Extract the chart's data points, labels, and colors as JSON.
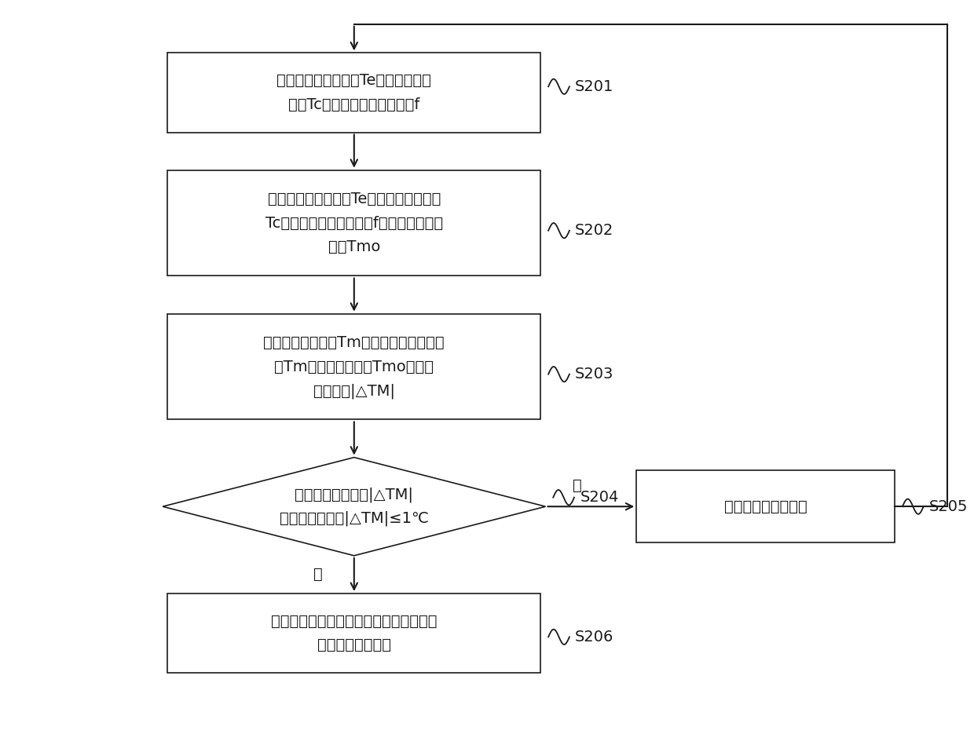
{
  "background_color": "#ffffff",
  "box_edge_color": "#000000",
  "text_color": "#000000",
  "font_size": 14,
  "step_font_size": 14,
  "S201_text_line1": "获取蒸发器中间管温Te、冷凝器中间",
  "S201_text_line2": "管温Tc，以及压缩机运行频率f",
  "S202_text_line1": "基于蒸发器中间管温Te、冷凝器中间管温",
  "S202_text_line2": "Tc，以及压缩机运行频率f，得到目标补气",
  "S202_text_line3": "温度Tmo",
  "S203_text_line1": "获取实测补气温度Tm，并计算实测补气温",
  "S203_text_line2": "度Tm与目标补气温度Tmo的差值",
  "S203_text_line3": "的绝对值|△TM|",
  "S204_text_line1": "判断差值的绝对值|△TM|",
  "S204_text_line2": "是否满足关系式|△TM|≤1℃",
  "S205_text": "调节电子膨胀阀开度",
  "S206_text_line1": "保持电子膨胀开度不变，以达到系统以最",
  "S206_text_line2": "佳性能运行的目的",
  "no_label": "否",
  "yes_label": "是"
}
